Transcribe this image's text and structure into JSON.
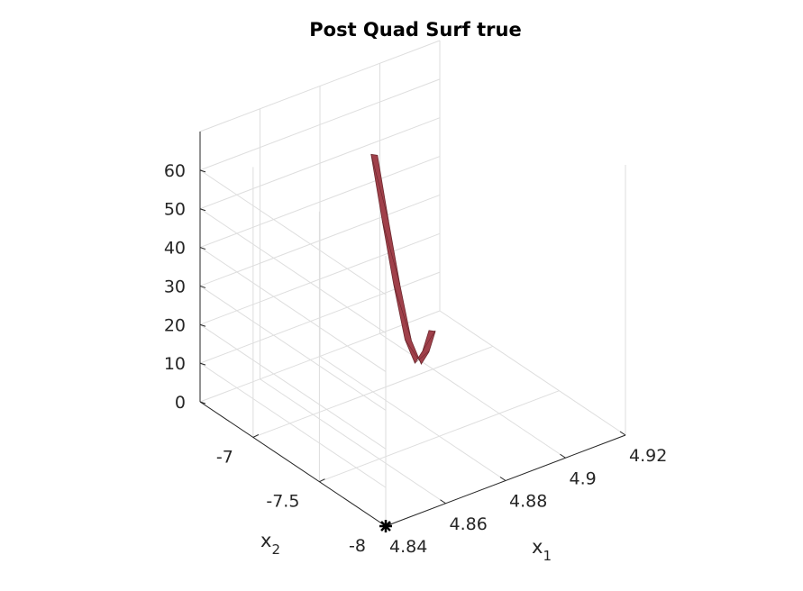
{
  "chart_data": {
    "type": "surface",
    "title": "Post Quad Surf true",
    "xlabel": "x",
    "xlabel_sub": "1",
    "ylabel": "x",
    "ylabel_sub": "2",
    "zlabel": "",
    "xlim": [
      4.84,
      4.92
    ],
    "ylim": [
      -8.0,
      -6.6
    ],
    "zlim": [
      0,
      70
    ],
    "x_ticks": [
      "4.84",
      "4.86",
      "4.88",
      "4.9",
      "4.92"
    ],
    "y_ticks": [
      "-8",
      "-7.5",
      "-7"
    ],
    "z_ticks": [
      "0",
      "10",
      "20",
      "30",
      "40",
      "50",
      "60"
    ],
    "grid": true,
    "surface_color": "#a0404a",
    "surface_ridge": [
      {
        "x": 4.876,
        "y": -7.1,
        "z": 65
      },
      {
        "x": 4.878,
        "y": -7.14,
        "z": 48
      },
      {
        "x": 4.88,
        "y": -7.18,
        "z": 32
      },
      {
        "x": 4.882,
        "y": -7.22,
        "z": 18
      },
      {
        "x": 4.884,
        "y": -7.25,
        "z": 12
      },
      {
        "x": 4.887,
        "y": -7.24,
        "z": 14
      },
      {
        "x": 4.89,
        "y": -7.22,
        "z": 18
      }
    ],
    "marker": {
      "x": 4.84,
      "y": -8.0,
      "z": 0,
      "symbol": "asterisk",
      "color": "#000000"
    }
  }
}
